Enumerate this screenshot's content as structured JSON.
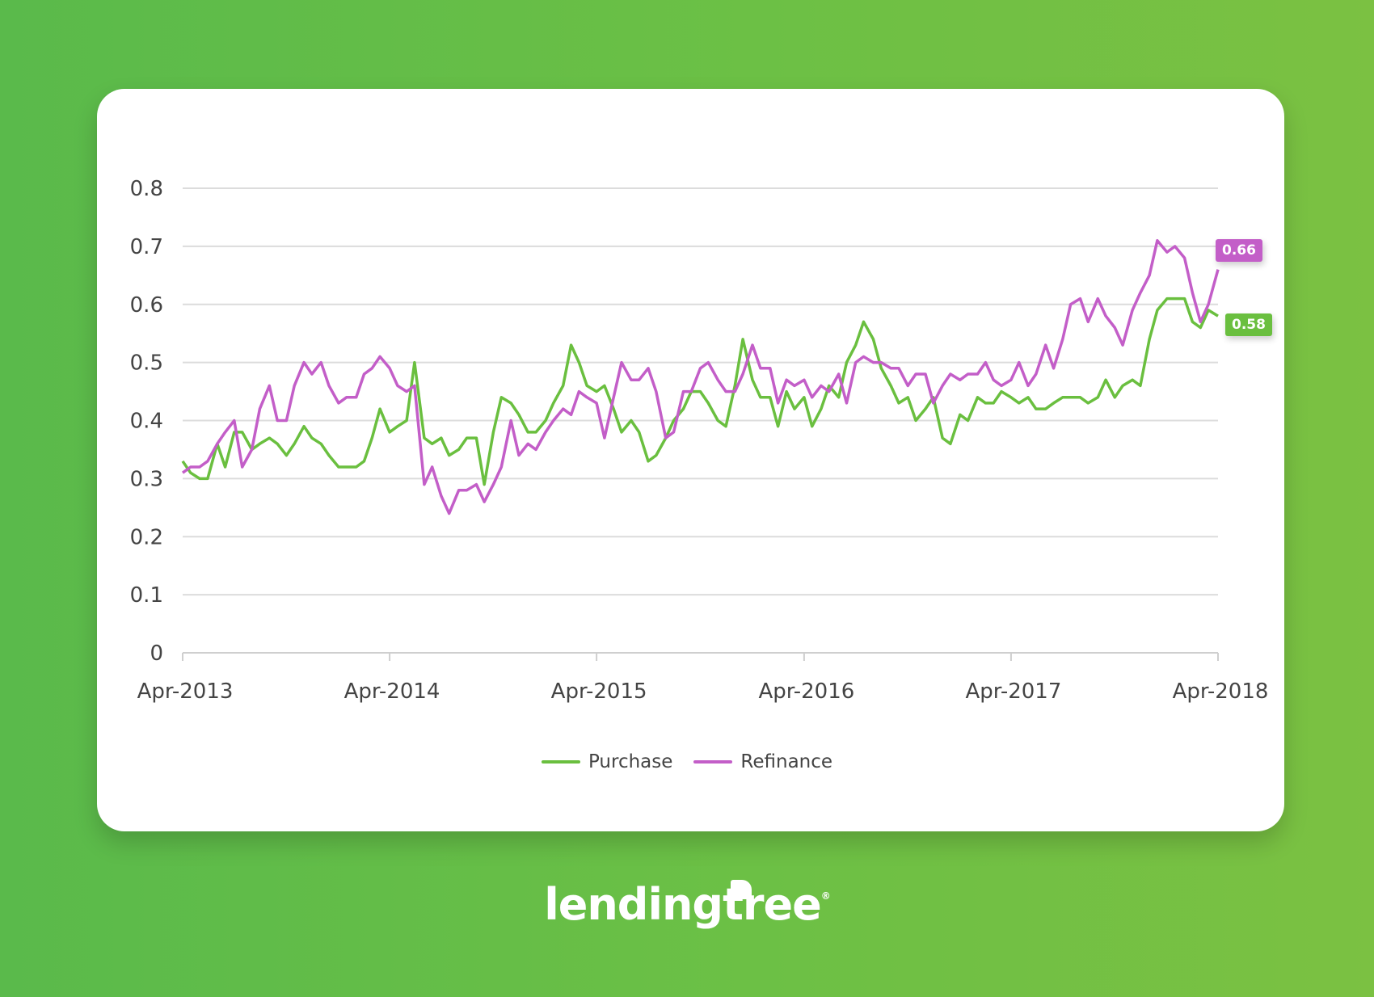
{
  "chart_data": {
    "type": "line",
    "title": "",
    "xlabel": "",
    "ylabel": "",
    "ylim": [
      0,
      0.8
    ],
    "y_ticks": [
      "0",
      "0.1",
      "0.2",
      "0.3",
      "0.4",
      "0.5",
      "0.6",
      "0.7",
      "0.8"
    ],
    "x_ticks": [
      "Apr-2013",
      "Apr-2014",
      "Apr-2015",
      "Apr-2016",
      "Apr-2017",
      "Apr-2018"
    ],
    "grid": "horizontal",
    "legend_position": "bottom",
    "x": [
      "2013-04-01",
      "2013-04-15",
      "2013-05-01",
      "2013-05-15",
      "2013-06-01",
      "2013-06-15",
      "2013-07-01",
      "2013-07-15",
      "2013-08-01",
      "2013-08-15",
      "2013-09-01",
      "2013-09-15",
      "2013-10-01",
      "2013-10-15",
      "2013-11-01",
      "2013-11-15",
      "2013-12-01",
      "2013-12-15",
      "2014-01-01",
      "2014-01-15",
      "2014-02-01",
      "2014-02-15",
      "2014-03-01",
      "2014-03-15",
      "2014-04-01",
      "2014-04-15",
      "2014-05-01",
      "2014-05-15",
      "2014-06-01",
      "2014-06-15",
      "2014-07-01",
      "2014-07-15",
      "2014-08-01",
      "2014-08-15",
      "2014-09-01",
      "2014-09-15",
      "2014-10-01",
      "2014-10-15",
      "2014-11-01",
      "2014-11-15",
      "2014-12-01",
      "2014-12-15",
      "2015-01-01",
      "2015-01-15",
      "2015-02-01",
      "2015-02-15",
      "2015-03-01",
      "2015-03-15",
      "2015-04-01",
      "2015-04-15",
      "2015-05-01",
      "2015-05-15",
      "2015-06-01",
      "2015-06-15",
      "2015-07-01",
      "2015-07-15",
      "2015-08-01",
      "2015-08-15",
      "2015-09-01",
      "2015-09-15",
      "2015-10-01",
      "2015-10-15",
      "2015-11-01",
      "2015-11-15",
      "2015-12-01",
      "2015-12-15",
      "2016-01-01",
      "2016-01-15",
      "2016-02-01",
      "2016-02-15",
      "2016-03-01",
      "2016-03-15",
      "2016-04-01",
      "2016-04-15",
      "2016-05-01",
      "2016-05-15",
      "2016-06-01",
      "2016-06-15",
      "2016-07-01",
      "2016-07-15",
      "2016-08-01",
      "2016-08-15",
      "2016-09-01",
      "2016-09-15",
      "2016-10-01",
      "2016-10-15",
      "2016-11-01",
      "2016-11-15",
      "2016-12-01",
      "2016-12-15",
      "2017-01-01",
      "2017-01-15",
      "2017-02-01",
      "2017-02-15",
      "2017-03-01",
      "2017-03-15",
      "2017-04-01",
      "2017-04-15",
      "2017-05-01",
      "2017-05-15",
      "2017-06-01",
      "2017-06-15",
      "2017-07-01",
      "2017-07-15",
      "2017-08-01",
      "2017-08-15",
      "2017-09-01",
      "2017-09-15",
      "2017-10-01",
      "2017-10-15",
      "2017-11-01",
      "2017-11-15",
      "2017-12-01",
      "2017-12-15",
      "2018-01-01",
      "2018-01-15",
      "2018-02-01",
      "2018-02-15",
      "2018-03-01",
      "2018-03-15",
      "2018-04-01"
    ],
    "series": [
      {
        "name": "Purchase",
        "color": "#6abf3f",
        "end_label": "0.58",
        "values": [
          0.33,
          0.31,
          0.3,
          0.3,
          0.36,
          0.32,
          0.38,
          0.38,
          0.35,
          0.36,
          0.37,
          0.36,
          0.34,
          0.36,
          0.39,
          0.37,
          0.36,
          0.34,
          0.32,
          0.32,
          0.32,
          0.33,
          0.37,
          0.42,
          0.38,
          0.39,
          0.4,
          0.5,
          0.37,
          0.36,
          0.37,
          0.34,
          0.35,
          0.37,
          0.37,
          0.29,
          0.38,
          0.44,
          0.43,
          0.41,
          0.38,
          0.38,
          0.4,
          0.43,
          0.46,
          0.53,
          0.5,
          0.46,
          0.45,
          0.46,
          0.42,
          0.38,
          0.4,
          0.38,
          0.33,
          0.34,
          0.37,
          0.4,
          0.42,
          0.45,
          0.45,
          0.43,
          0.4,
          0.39,
          0.46,
          0.54,
          0.47,
          0.44,
          0.44,
          0.39,
          0.45,
          0.42,
          0.44,
          0.39,
          0.42,
          0.46,
          0.44,
          0.5,
          0.53,
          0.57,
          0.54,
          0.49,
          0.46,
          0.43,
          0.44,
          0.4,
          0.42,
          0.44,
          0.37,
          0.36,
          0.41,
          0.4,
          0.44,
          0.43,
          0.43,
          0.45,
          0.44,
          0.43,
          0.44,
          0.42,
          0.42,
          0.43,
          0.44,
          0.44,
          0.44,
          0.43,
          0.44,
          0.47,
          0.44,
          0.46,
          0.47,
          0.46,
          0.54,
          0.59,
          0.61,
          0.61,
          0.61,
          0.57,
          0.56,
          0.59,
          0.58
        ]
      },
      {
        "name": "Refinance",
        "color": "#c35ec8",
        "end_label": "0.66",
        "values": [
          0.31,
          0.32,
          0.32,
          0.33,
          0.36,
          0.38,
          0.4,
          0.32,
          0.35,
          0.42,
          0.46,
          0.4,
          0.4,
          0.46,
          0.5,
          0.48,
          0.5,
          0.46,
          0.43,
          0.44,
          0.44,
          0.48,
          0.49,
          0.51,
          0.49,
          0.46,
          0.45,
          0.46,
          0.29,
          0.32,
          0.27,
          0.24,
          0.28,
          0.28,
          0.29,
          0.26,
          0.29,
          0.32,
          0.4,
          0.34,
          0.36,
          0.35,
          0.38,
          0.4,
          0.42,
          0.41,
          0.45,
          0.44,
          0.43,
          0.37,
          0.44,
          0.5,
          0.47,
          0.47,
          0.49,
          0.45,
          0.37,
          0.38,
          0.45,
          0.45,
          0.49,
          0.5,
          0.47,
          0.45,
          0.45,
          0.48,
          0.53,
          0.49,
          0.49,
          0.43,
          0.47,
          0.46,
          0.47,
          0.44,
          0.46,
          0.45,
          0.48,
          0.43,
          0.5,
          0.51,
          0.5,
          0.5,
          0.49,
          0.49,
          0.46,
          0.48,
          0.48,
          0.43,
          0.46,
          0.48,
          0.47,
          0.48,
          0.48,
          0.5,
          0.47,
          0.46,
          0.47,
          0.5,
          0.46,
          0.48,
          0.53,
          0.49,
          0.54,
          0.6,
          0.61,
          0.57,
          0.61,
          0.58,
          0.56,
          0.53,
          0.59,
          0.62,
          0.65,
          0.71,
          0.69,
          0.7,
          0.68,
          0.62,
          0.57,
          0.6,
          0.66
        ]
      }
    ]
  },
  "logo": {
    "text": "lendingtree",
    "registered": "®"
  }
}
